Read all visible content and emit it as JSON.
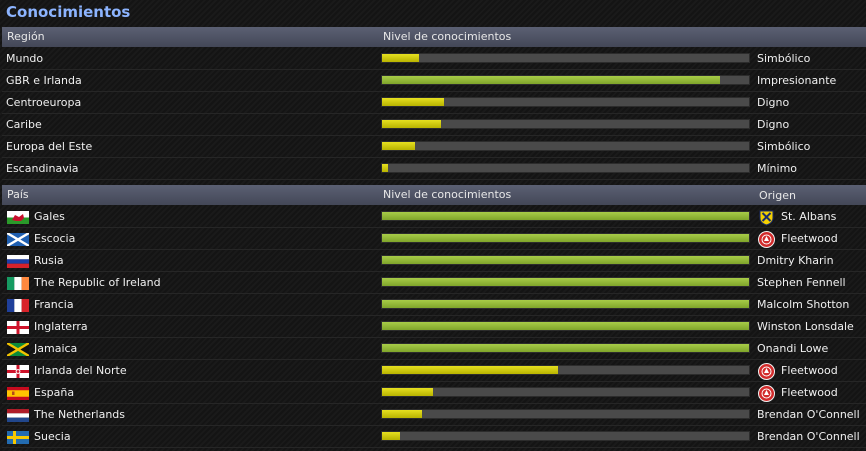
{
  "panel": {
    "title": "Conocimientos"
  },
  "regions": {
    "headers": {
      "region": "Región",
      "level": "Nivel de conocimientos"
    },
    "rows": [
      {
        "name": "Mundo",
        "level": 0.1,
        "level_label": "Simbólico",
        "bar_color": "yellow"
      },
      {
        "name": "GBR e Irlanda",
        "level": 0.92,
        "level_label": "Impresionante",
        "bar_color": "green"
      },
      {
        "name": "Centroeuropa",
        "level": 0.17,
        "level_label": "Digno",
        "bar_color": "yellow"
      },
      {
        "name": "Caribe",
        "level": 0.16,
        "level_label": "Digno",
        "bar_color": "yellow"
      },
      {
        "name": "Europa del Este",
        "level": 0.09,
        "level_label": "Simbólico",
        "bar_color": "yellow"
      },
      {
        "name": "Escandinavia",
        "level": 0.015,
        "level_label": "Mínimo",
        "bar_color": "yellow"
      }
    ]
  },
  "countries": {
    "headers": {
      "country": "País",
      "level": "Nivel de conocimientos",
      "origin": "Origen"
    },
    "rows": [
      {
        "name": "Gales",
        "flag": "wales-flag-icon",
        "level": 1.0,
        "bar_color": "green",
        "origin": "St. Albans",
        "origin_badge": "st-albans-crest-icon"
      },
      {
        "name": "Escocia",
        "flag": "scotland-flag-icon",
        "level": 1.0,
        "bar_color": "green",
        "origin": "Fleetwood",
        "origin_badge": "fleetwood-crest-icon"
      },
      {
        "name": "Rusia",
        "flag": "russia-flag-icon",
        "level": 1.0,
        "bar_color": "green",
        "origin": "Dmitry Kharin",
        "origin_badge": ""
      },
      {
        "name": "The Republic of Ireland",
        "flag": "ireland-flag-icon",
        "level": 1.0,
        "bar_color": "green",
        "origin": "Stephen Fennell",
        "origin_badge": ""
      },
      {
        "name": "Francia",
        "flag": "france-flag-icon",
        "level": 1.0,
        "bar_color": "green",
        "origin": "Malcolm Shotton",
        "origin_badge": ""
      },
      {
        "name": "Inglaterra",
        "flag": "england-flag-icon",
        "level": 1.0,
        "bar_color": "green",
        "origin": "Winston Lonsdale",
        "origin_badge": ""
      },
      {
        "name": "Jamaica",
        "flag": "jamaica-flag-icon",
        "level": 1.0,
        "bar_color": "green",
        "origin": "Onandi Lowe",
        "origin_badge": ""
      },
      {
        "name": "Irlanda del Norte",
        "flag": "northern-ireland-flag-icon",
        "level": 0.48,
        "bar_color": "yellow",
        "origin": "Fleetwood",
        "origin_badge": "fleetwood-crest-icon"
      },
      {
        "name": "España",
        "flag": "spain-flag-icon",
        "level": 0.14,
        "bar_color": "yellow",
        "origin": "Fleetwood",
        "origin_badge": "fleetwood-crest-icon"
      },
      {
        "name": "The Netherlands",
        "flag": "netherlands-flag-icon",
        "level": 0.11,
        "bar_color": "yellow",
        "origin": "Brendan O'Connell",
        "origin_badge": ""
      },
      {
        "name": "Suecia",
        "flag": "sweden-flag-icon",
        "level": 0.05,
        "bar_color": "yellow",
        "origin": "Brendan O'Connell",
        "origin_badge": ""
      }
    ]
  }
}
